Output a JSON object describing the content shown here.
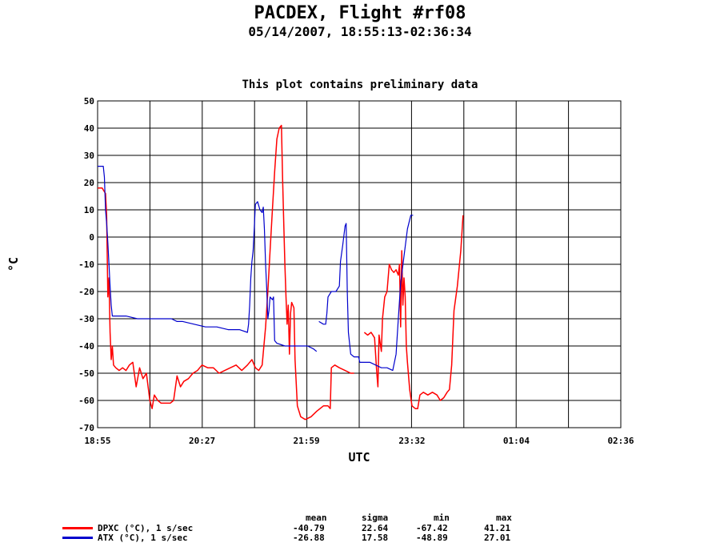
{
  "title": "PACDEX, Flight #rf08",
  "subtitle": "05/14/2007, 18:55:13-02:36:34",
  "note": "This plot contains preliminary data",
  "chart_data": {
    "type": "line",
    "xlabel": "UTC",
    "ylabel": "°C",
    "ylim": [
      -70,
      50
    ],
    "yticks": [
      50,
      40,
      30,
      20,
      10,
      0,
      -10,
      -20,
      -30,
      -40,
      -50,
      -60,
      -70
    ],
    "xlim": [
      "18:55",
      "02:36"
    ],
    "xticks": [
      "18:55",
      "20:27",
      "21:59",
      "23:32",
      "01:04",
      "02:36"
    ],
    "grid": true,
    "series": [
      {
        "name": "DPXC (°C), 1 s/sec",
        "color": "#ff0000",
        "points": [
          [
            "18:55",
            18
          ],
          [
            "18:59",
            18
          ],
          [
            "19:02",
            16
          ],
          [
            "19:03",
            8
          ],
          [
            "19:04",
            -22
          ],
          [
            "19:05",
            -15
          ],
          [
            "19:06",
            -35
          ],
          [
            "19:07",
            -45
          ],
          [
            "19:08",
            -40
          ],
          [
            "19:09",
            -47
          ],
          [
            "19:11",
            -48
          ],
          [
            "19:14",
            -49
          ],
          [
            "19:17",
            -48
          ],
          [
            "19:20",
            -49
          ],
          [
            "19:23",
            -47
          ],
          [
            "19:26",
            -46
          ],
          [
            "19:29",
            -55
          ],
          [
            "19:32",
            -48
          ],
          [
            "19:35",
            -52
          ],
          [
            "19:38",
            -50
          ],
          [
            "19:41",
            -60
          ],
          [
            "19:43",
            -63
          ],
          [
            "19:45",
            -58
          ],
          [
            "19:48",
            -60
          ],
          [
            "19:51",
            -61
          ],
          [
            "19:55",
            -61
          ],
          [
            "19:59",
            -61
          ],
          [
            "20:02",
            -60
          ],
          [
            "20:05",
            -51
          ],
          [
            "20:08",
            -55
          ],
          [
            "20:11",
            -53
          ],
          [
            "20:15",
            -52
          ],
          [
            "20:19",
            -50
          ],
          [
            "20:23",
            -49
          ],
          [
            "20:27",
            -47
          ],
          [
            "20:32",
            -48
          ],
          [
            "20:37",
            -48
          ],
          [
            "20:42",
            -50
          ],
          [
            "20:47",
            -49
          ],
          [
            "20:52",
            -48
          ],
          [
            "20:57",
            -47
          ],
          [
            "21:02",
            -49
          ],
          [
            "21:07",
            -47
          ],
          [
            "21:11",
            -45
          ],
          [
            "21:14",
            -48
          ],
          [
            "21:17",
            -49
          ],
          [
            "21:20",
            -47
          ],
          [
            "21:23",
            -33
          ],
          [
            "21:25",
            -20
          ],
          [
            "21:27",
            -5
          ],
          [
            "21:29",
            10
          ],
          [
            "21:31",
            24
          ],
          [
            "21:33",
            36
          ],
          [
            "21:35",
            40
          ],
          [
            "21:37",
            41
          ],
          [
            "21:38",
            22
          ],
          [
            "21:39",
            5
          ],
          [
            "21:40",
            -10
          ],
          [
            "21:41",
            -22
          ],
          [
            "21:42",
            -32
          ],
          [
            "21:43",
            -25
          ],
          [
            "21:44",
            -43
          ],
          [
            "21:45",
            -28
          ],
          [
            "21:46",
            -24
          ],
          [
            "21:48",
            -26
          ],
          [
            "21:49",
            -45
          ],
          [
            "21:51",
            -62
          ],
          [
            "21:54",
            -66
          ],
          [
            "21:58",
            -67
          ],
          [
            "22:03",
            -66
          ],
          [
            "22:08",
            -64
          ],
          [
            "22:14",
            -62
          ],
          [
            "22:18",
            -62
          ],
          [
            "22:20",
            -63
          ],
          [
            "22:21",
            -48
          ],
          [
            "22:24",
            -47
          ],
          [
            "22:28",
            -48
          ],
          [
            "22:33",
            -49
          ],
          [
            "22:38",
            -50
          ],
          [
            "22:41",
            -50
          ],
          [
            null,
            null
          ],
          [
            "22:50",
            -35
          ],
          [
            "22:53",
            -36
          ],
          [
            "22:56",
            -35
          ],
          [
            "22:59",
            -37
          ],
          [
            "23:01",
            -50
          ],
          [
            "23:02",
            -55
          ],
          [
            "23:03",
            -36
          ],
          [
            "23:05",
            -42
          ],
          [
            "23:06",
            -30
          ],
          [
            "23:08",
            -22
          ],
          [
            "23:10",
            -20
          ],
          [
            "23:12",
            -10
          ],
          [
            "23:14",
            -12
          ],
          [
            "23:16",
            -13
          ],
          [
            "23:18",
            -12
          ],
          [
            "23:20",
            -14
          ],
          [
            "23:21",
            -10
          ],
          [
            "23:22",
            -33
          ],
          [
            "23:23",
            -5
          ],
          [
            "23:24",
            -25
          ],
          [
            "23:25",
            -15
          ],
          [
            "23:26",
            -22
          ],
          [
            "23:27",
            -40
          ],
          [
            "23:28",
            -46
          ],
          [
            "23:30",
            -56
          ],
          [
            "23:32",
            -62
          ],
          [
            "23:35",
            -63
          ],
          [
            "23:37",
            -63
          ],
          [
            "23:39",
            -58
          ],
          [
            "23:42",
            -57
          ],
          [
            "23:46",
            -58
          ],
          [
            "23:50",
            -57
          ],
          [
            "23:54",
            -58
          ],
          [
            "23:57",
            -60
          ],
          [
            "00:00",
            -59
          ],
          [
            "00:03",
            -57
          ],
          [
            "00:05",
            -56
          ],
          [
            "00:07",
            -47
          ],
          [
            "00:09",
            -27
          ],
          [
            "00:12",
            -18
          ],
          [
            "00:15",
            -5
          ],
          [
            "00:17",
            8
          ]
        ]
      },
      {
        "name": "ATX (°C), 1 s/sec",
        "color": "#0000cc",
        "points": [
          [
            "18:55",
            26
          ],
          [
            "18:58",
            26
          ],
          [
            "19:00",
            26
          ],
          [
            "19:01",
            22
          ],
          [
            "19:02",
            10
          ],
          [
            "19:03",
            5
          ],
          [
            "19:04",
            -2
          ],
          [
            "19:05",
            -10
          ],
          [
            "19:06",
            -18
          ],
          [
            "19:07",
            -25
          ],
          [
            "19:08",
            -29
          ],
          [
            "19:12",
            -29
          ],
          [
            "19:20",
            -29
          ],
          [
            "19:30",
            -30
          ],
          [
            "19:40",
            -30
          ],
          [
            "19:50",
            -30
          ],
          [
            "20:00",
            -30
          ],
          [
            "20:05",
            -31
          ],
          [
            "20:10",
            -31
          ],
          [
            "20:20",
            -32
          ],
          [
            "20:30",
            -33
          ],
          [
            "20:40",
            -33
          ],
          [
            "20:50",
            -34
          ],
          [
            "21:00",
            -34
          ],
          [
            "21:07",
            -35
          ],
          [
            "21:08",
            -32
          ],
          [
            "21:09",
            -25
          ],
          [
            "21:10",
            -15
          ],
          [
            "21:11",
            -9
          ],
          [
            "21:12",
            -5
          ],
          [
            "21:13",
            3
          ],
          [
            "21:14",
            12
          ],
          [
            "21:16",
            13
          ],
          [
            "21:18",
            10
          ],
          [
            "21:20",
            9
          ],
          [
            "21:21",
            11
          ],
          [
            "21:22",
            3
          ],
          [
            "21:23",
            -10
          ],
          [
            "21:24",
            -19
          ],
          [
            "21:25",
            -30
          ],
          [
            "21:26",
            -27
          ],
          [
            "21:27",
            -22
          ],
          [
            "21:29",
            -23
          ],
          [
            "21:30",
            -22
          ],
          [
            "21:31",
            -38
          ],
          [
            "21:33",
            -39
          ],
          [
            "21:40",
            -40
          ],
          [
            "21:50",
            -40
          ],
          [
            "22:00",
            -40
          ],
          [
            "22:05",
            -41
          ],
          [
            "22:08",
            -42
          ],
          [
            null,
            null
          ],
          [
            "22:10",
            -31
          ],
          [
            "22:14",
            -32
          ],
          [
            "22:16",
            -32
          ],
          [
            "22:17",
            -28
          ],
          [
            "22:18",
            -22
          ],
          [
            "22:21",
            -20
          ],
          [
            "22:25",
            -20
          ],
          [
            "22:28",
            -18
          ],
          [
            "22:29",
            -9
          ],
          [
            "22:31",
            -3
          ],
          [
            "22:33",
            4
          ],
          [
            "22:34",
            5
          ],
          [
            "22:35",
            -20
          ],
          [
            "22:36",
            -35
          ],
          [
            "22:38",
            -43
          ],
          [
            "22:41",
            -44
          ],
          [
            "22:45",
            -44
          ],
          [
            "22:46",
            -46
          ],
          [
            "22:50",
            -46
          ],
          [
            "22:55",
            -46
          ],
          [
            "23:00",
            -47
          ],
          [
            "23:05",
            -48
          ],
          [
            "23:10",
            -48
          ],
          [
            "23:15",
            -49
          ],
          [
            "23:18",
            -43
          ],
          [
            "23:20",
            -30
          ],
          [
            "23:22",
            -17
          ],
          [
            "23:25",
            -7
          ],
          [
            "23:28",
            3
          ],
          [
            "23:31",
            8
          ],
          [
            "23:33",
            8
          ]
        ]
      }
    ]
  },
  "stats": {
    "headers": [
      "mean",
      "sigma",
      "min",
      "max"
    ],
    "rows": [
      {
        "label": "DPXC (°C), 1 s/sec",
        "mean": "-40.79",
        "sigma": "22.64",
        "min": "-67.42",
        "max": "41.21",
        "color": "#ff0000"
      },
      {
        "label": "ATX (°C), 1 s/sec",
        "mean": "-26.88",
        "sigma": "17.58",
        "min": "-48.89",
        "max": "27.01",
        "color": "#0000cc"
      }
    ]
  }
}
